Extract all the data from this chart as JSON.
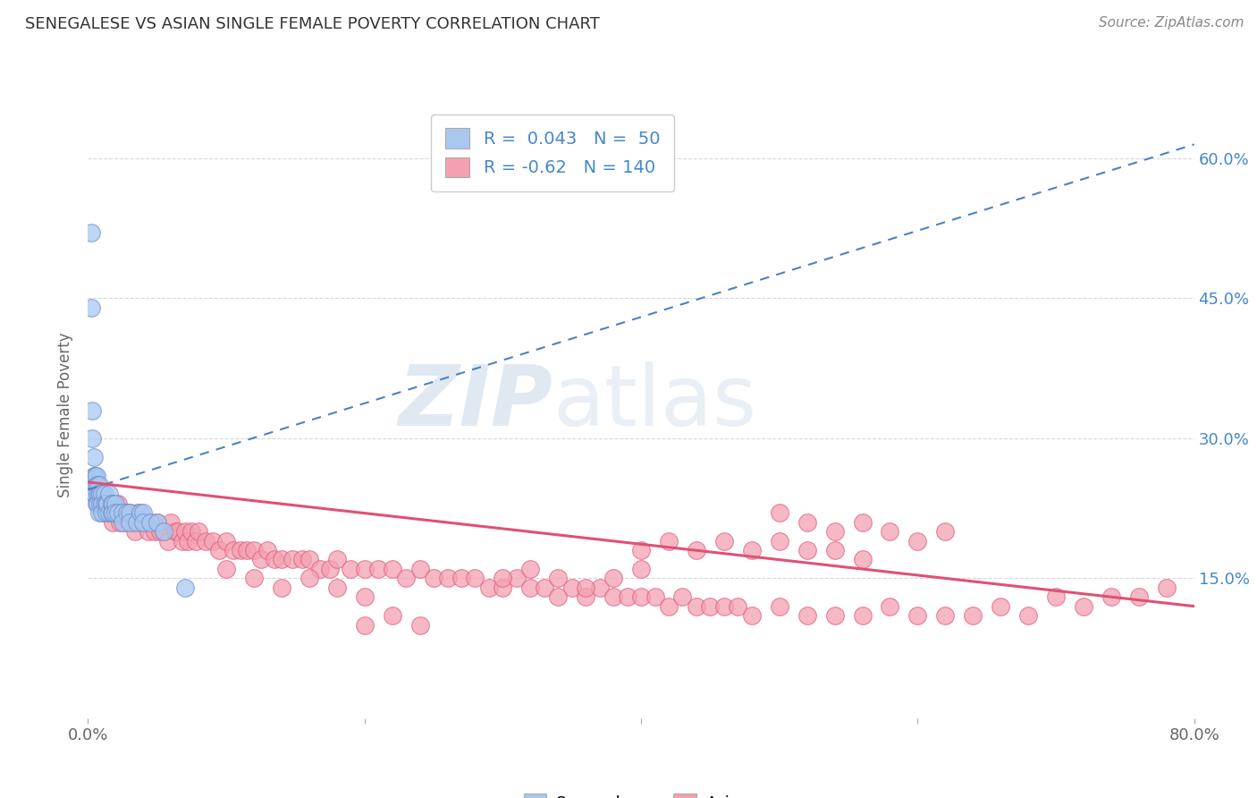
{
  "title": "SENEGALESE VS ASIAN SINGLE FEMALE POVERTY CORRELATION CHART",
  "source": "Source: ZipAtlas.com",
  "ylabel": "Single Female Poverty",
  "xlabel": "",
  "watermark_zip": "ZIP",
  "watermark_atlas": "atlas",
  "x_min": 0.0,
  "x_max": 0.8,
  "y_min": 0.0,
  "y_max": 0.65,
  "y_ticks": [
    0.0,
    0.15,
    0.3,
    0.45,
    0.6
  ],
  "y_tick_labels": [
    "",
    "15.0%",
    "30.0%",
    "45.0%",
    "60.0%"
  ],
  "x_ticks": [
    0.0,
    0.2,
    0.4,
    0.6,
    0.8
  ],
  "x_tick_labels": [
    "0.0%",
    "",
    "",
    "",
    "80.0%"
  ],
  "blue_R": 0.043,
  "blue_N": 50,
  "pink_R": -0.62,
  "pink_N": 140,
  "blue_color": "#A8C8F0",
  "pink_color": "#F4A0B0",
  "blue_edge_color": "#7090D0",
  "pink_edge_color": "#E06080",
  "blue_line_color": "#5080C0",
  "pink_line_color": "#E05075",
  "background_color": "#FFFFFF",
  "grid_color": "#D8D8D8",
  "title_color": "#333333",
  "right_axis_color": "#4488CC",
  "blue_scatter_x": [
    0.002,
    0.002,
    0.003,
    0.003,
    0.004,
    0.004,
    0.004,
    0.005,
    0.005,
    0.006,
    0.006,
    0.006,
    0.007,
    0.007,
    0.007,
    0.008,
    0.008,
    0.008,
    0.009,
    0.009,
    0.01,
    0.01,
    0.01,
    0.012,
    0.012,
    0.013,
    0.013,
    0.014,
    0.015,
    0.015,
    0.017,
    0.017,
    0.018,
    0.018,
    0.02,
    0.02,
    0.022,
    0.025,
    0.025,
    0.028,
    0.03,
    0.03,
    0.035,
    0.038,
    0.04,
    0.04,
    0.045,
    0.05,
    0.055,
    0.07
  ],
  "blue_scatter_y": [
    0.52,
    0.44,
    0.33,
    0.3,
    0.28,
    0.26,
    0.24,
    0.26,
    0.24,
    0.26,
    0.25,
    0.23,
    0.25,
    0.24,
    0.23,
    0.25,
    0.24,
    0.22,
    0.24,
    0.23,
    0.24,
    0.23,
    0.22,
    0.24,
    0.23,
    0.23,
    0.22,
    0.23,
    0.24,
    0.22,
    0.23,
    0.22,
    0.23,
    0.22,
    0.23,
    0.22,
    0.22,
    0.22,
    0.21,
    0.22,
    0.22,
    0.21,
    0.21,
    0.22,
    0.22,
    0.21,
    0.21,
    0.21,
    0.2,
    0.14
  ],
  "pink_scatter_x": [
    0.005,
    0.007,
    0.008,
    0.009,
    0.01,
    0.011,
    0.012,
    0.013,
    0.014,
    0.015,
    0.016,
    0.017,
    0.018,
    0.019,
    0.02,
    0.022,
    0.023,
    0.024,
    0.025,
    0.026,
    0.028,
    0.03,
    0.032,
    0.034,
    0.036,
    0.038,
    0.04,
    0.042,
    0.044,
    0.046,
    0.048,
    0.05,
    0.052,
    0.055,
    0.058,
    0.06,
    0.063,
    0.065,
    0.068,
    0.07,
    0.072,
    0.075,
    0.078,
    0.08,
    0.085,
    0.09,
    0.095,
    0.1,
    0.105,
    0.11,
    0.115,
    0.12,
    0.125,
    0.13,
    0.135,
    0.14,
    0.148,
    0.155,
    0.16,
    0.168,
    0.175,
    0.18,
    0.19,
    0.2,
    0.21,
    0.22,
    0.23,
    0.24,
    0.25,
    0.26,
    0.27,
    0.28,
    0.29,
    0.3,
    0.31,
    0.32,
    0.33,
    0.34,
    0.35,
    0.36,
    0.37,
    0.38,
    0.39,
    0.4,
    0.41,
    0.42,
    0.43,
    0.44,
    0.45,
    0.46,
    0.47,
    0.48,
    0.5,
    0.52,
    0.54,
    0.56,
    0.58,
    0.6,
    0.62,
    0.64,
    0.66,
    0.68,
    0.7,
    0.72,
    0.74,
    0.76,
    0.78,
    0.5,
    0.52,
    0.54,
    0.56,
    0.58,
    0.6,
    0.62,
    0.4,
    0.42,
    0.44,
    0.46,
    0.48,
    0.5,
    0.52,
    0.54,
    0.56,
    0.3,
    0.32,
    0.34,
    0.36,
    0.38,
    0.4,
    0.2,
    0.22,
    0.24,
    0.1,
    0.12,
    0.14,
    0.16,
    0.18,
    0.2
  ],
  "pink_scatter_y": [
    0.26,
    0.25,
    0.24,
    0.23,
    0.24,
    0.23,
    0.22,
    0.23,
    0.22,
    0.23,
    0.22,
    0.22,
    0.21,
    0.23,
    0.22,
    0.23,
    0.21,
    0.22,
    0.22,
    0.21,
    0.22,
    0.22,
    0.21,
    0.2,
    0.22,
    0.21,
    0.21,
    0.21,
    0.2,
    0.21,
    0.2,
    0.21,
    0.2,
    0.2,
    0.19,
    0.21,
    0.2,
    0.2,
    0.19,
    0.2,
    0.19,
    0.2,
    0.19,
    0.2,
    0.19,
    0.19,
    0.18,
    0.19,
    0.18,
    0.18,
    0.18,
    0.18,
    0.17,
    0.18,
    0.17,
    0.17,
    0.17,
    0.17,
    0.17,
    0.16,
    0.16,
    0.17,
    0.16,
    0.16,
    0.16,
    0.16,
    0.15,
    0.16,
    0.15,
    0.15,
    0.15,
    0.15,
    0.14,
    0.14,
    0.15,
    0.14,
    0.14,
    0.13,
    0.14,
    0.13,
    0.14,
    0.13,
    0.13,
    0.13,
    0.13,
    0.12,
    0.13,
    0.12,
    0.12,
    0.12,
    0.12,
    0.11,
    0.12,
    0.11,
    0.11,
    0.11,
    0.12,
    0.11,
    0.11,
    0.11,
    0.12,
    0.11,
    0.13,
    0.12,
    0.13,
    0.13,
    0.14,
    0.22,
    0.21,
    0.2,
    0.21,
    0.2,
    0.19,
    0.2,
    0.18,
    0.19,
    0.18,
    0.19,
    0.18,
    0.19,
    0.18,
    0.18,
    0.17,
    0.15,
    0.16,
    0.15,
    0.14,
    0.15,
    0.16,
    0.1,
    0.11,
    0.1,
    0.16,
    0.15,
    0.14,
    0.15,
    0.14,
    0.13
  ],
  "blue_trend_x": [
    0.0,
    0.8
  ],
  "blue_trend_y": [
    0.245,
    0.615
  ],
  "pink_trend_x": [
    0.0,
    0.8
  ],
  "pink_trend_y": [
    0.253,
    0.12
  ]
}
